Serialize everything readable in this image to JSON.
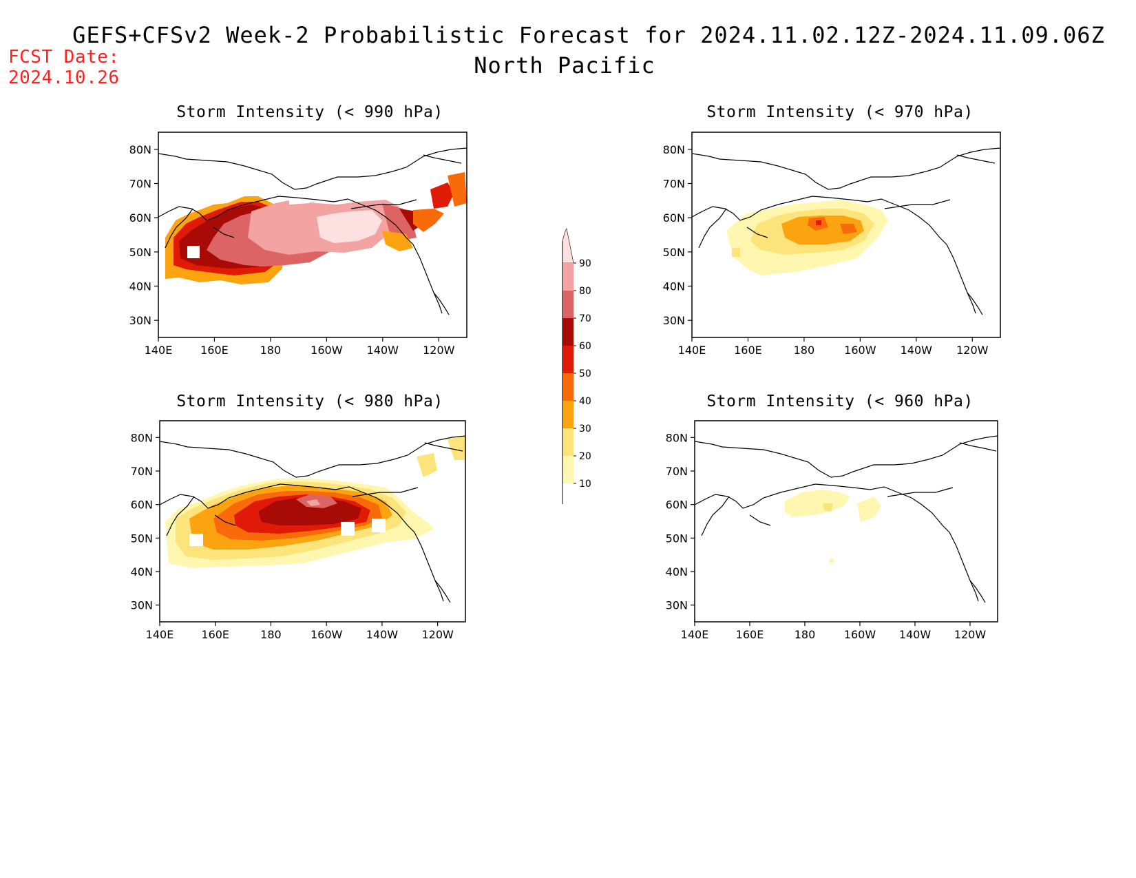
{
  "header": {
    "title": "GEFS+CFSv2 Week-2 Probabilistic Forecast for 2024.11.02.12Z-2024.11.09.06Z",
    "subtitle": "North Pacific",
    "fcst_label": "FCST Date:",
    "fcst_date": "2024.10.26"
  },
  "axes": {
    "lat_ticks": [
      "80N",
      "70N",
      "60N",
      "50N",
      "40N",
      "30N"
    ],
    "lat_values": [
      80,
      70,
      60,
      50,
      40,
      30
    ],
    "lon_ticks": [
      "140E",
      "160E",
      "180",
      "160W",
      "140W",
      "120W"
    ],
    "lon_values": [
      140,
      160,
      180,
      200,
      220,
      240
    ],
    "lon_range": [
      140,
      250
    ],
    "lat_range": [
      25,
      85
    ]
  },
  "colorbar": {
    "levels": [
      "10",
      "20",
      "30",
      "40",
      "50",
      "60",
      "70",
      "80",
      "90"
    ],
    "colors": [
      "#fff7b0",
      "#fde47a",
      "#fba40f",
      "#f96a0b",
      "#e11a07",
      "#a80b05",
      "#dc6464",
      "#f4a3a3",
      "#fde0e0"
    ]
  },
  "panels": [
    {
      "id": "p990",
      "title": "Storm Intensity (< 990 hPa)"
    },
    {
      "id": "p970",
      "title": "Storm Intensity (< 970 hPa)"
    },
    {
      "id": "p980",
      "title": "Storm Intensity (< 980 hPa)"
    },
    {
      "id": "p960",
      "title": "Storm Intensity (< 960 hPa)"
    }
  ]
}
